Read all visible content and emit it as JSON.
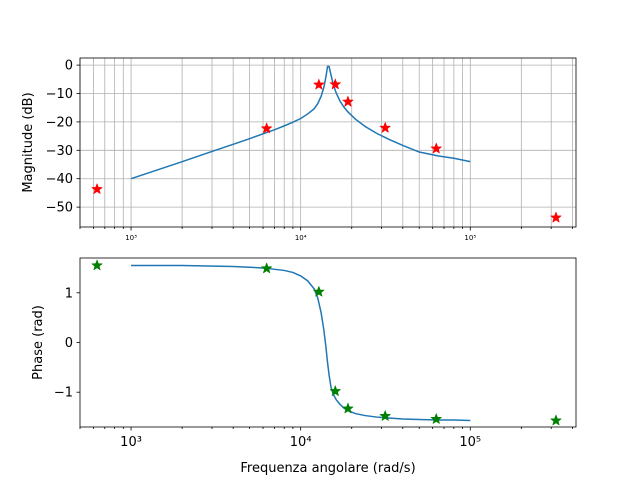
{
  "chart_data": [
    {
      "type": "line",
      "panel": "magnitude",
      "ylabel": "Magnitude (dB)",
      "xscale": "log",
      "xlim": [
        500,
        420000
      ],
      "ylim": [
        -57,
        2.5
      ],
      "yticks": [
        0,
        -10,
        -20,
        -30,
        -40,
        -50
      ],
      "xticks": [
        1000,
        10000,
        100000
      ],
      "xtick_labels": [
        "10³",
        "10⁴",
        "10⁵"
      ],
      "grid": true,
      "curve": {
        "x": [
          1000,
          2000,
          3000,
          4000,
          5000,
          6000,
          7000,
          8000,
          9000,
          10000,
          11000,
          12000,
          12600,
          13200,
          13700,
          14100,
          14400,
          14700,
          15100,
          15600,
          16200,
          17000,
          18000,
          19000,
          21000,
          24000,
          28000,
          33000,
          40000,
          50000,
          65000,
          80000,
          100000
        ],
        "y": [
          -40.0,
          -34.0,
          -30.4,
          -27.9,
          -25.9,
          -24.2,
          -22.8,
          -21.4,
          -20.1,
          -18.8,
          -17.2,
          -15.4,
          -13.6,
          -11.0,
          -7.8,
          -4.0,
          -0.5,
          -0.5,
          -3.5,
          -7.0,
          -9.8,
          -12.5,
          -14.8,
          -16.5,
          -19.0,
          -21.6,
          -24.0,
          -26.1,
          -28.3,
          -30.6,
          -32.0,
          -32.8,
          -34.0
        ],
        "color": "#1f77b4"
      },
      "markers": {
        "x": [
          630,
          6300,
          12800,
          16000,
          19000,
          31500,
          63000,
          320000
        ],
        "y": [
          -43.7,
          -22.3,
          -6.9,
          -6.8,
          -12.9,
          -22.1,
          -29.4,
          -53.7
        ],
        "color": "#ff0000",
        "marker": "star"
      }
    },
    {
      "type": "line",
      "panel": "phase",
      "xlabel": "Frequenza angolare (rad/s)",
      "ylabel": "Phase (rad)",
      "xscale": "log",
      "xlim": [
        500,
        420000
      ],
      "ylim": [
        -1.7,
        1.7
      ],
      "yticks": [
        1,
        0,
        -1
      ],
      "xticks": [
        1000,
        10000,
        100000
      ],
      "xtick_labels": [
        "10³",
        "10⁴",
        "10⁵"
      ],
      "grid": false,
      "curve": {
        "x": [
          1000,
          2000,
          4000,
          6000,
          8000,
          9000,
          10000,
          11000,
          12000,
          12600,
          13200,
          13700,
          14100,
          14400,
          14700,
          15100,
          15600,
          16200,
          17000,
          18000,
          19000,
          21000,
          24000,
          28000,
          33000,
          40000,
          50000,
          65000,
          80000,
          100000
        ],
        "y": [
          1.55,
          1.55,
          1.53,
          1.5,
          1.45,
          1.41,
          1.34,
          1.24,
          1.08,
          0.9,
          0.6,
          0.25,
          -0.1,
          -0.4,
          -0.65,
          -0.9,
          -1.05,
          -1.15,
          -1.24,
          -1.32,
          -1.37,
          -1.43,
          -1.47,
          -1.5,
          -1.52,
          -1.54,
          -1.55,
          -1.56,
          -1.56,
          -1.57
        ],
        "color": "#1f77b4"
      },
      "markers": {
        "x": [
          630,
          6300,
          12800,
          16000,
          19000,
          31500,
          63000,
          320000
        ],
        "y": [
          1.55,
          1.49,
          1.02,
          -0.98,
          -1.33,
          -1.48,
          -1.54,
          -1.57
        ],
        "color": "#008000",
        "marker": "star"
      }
    }
  ]
}
